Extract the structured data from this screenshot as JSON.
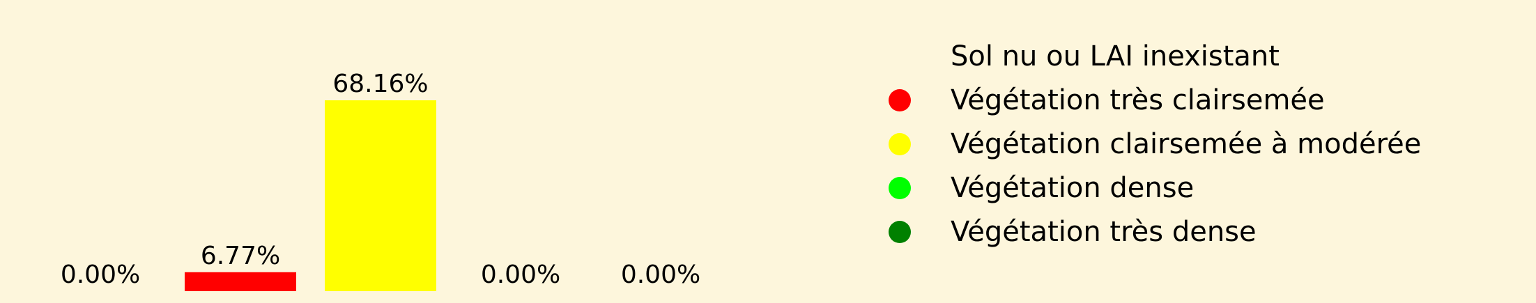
{
  "colors": {
    "background": "#fdf6dc",
    "text": "#000000"
  },
  "chart_data": {
    "type": "bar",
    "categories": [
      "Sol nu ou LAI inexistant",
      "Végétation très clairsemée",
      "Végétation clairsemée à modérée",
      "Végétation dense",
      "Végétation très dense"
    ],
    "values": [
      0.0,
      6.77,
      68.16,
      0.0,
      0.0
    ],
    "data_labels": [
      "0.00%",
      "6.77%",
      "68.16%",
      "0.00%",
      "0.00%"
    ],
    "colors": [
      "#fdf6dc",
      "#ff0000",
      "#ffff00",
      "#00ff00",
      "#008000"
    ],
    "ylim": [
      0,
      68.16
    ],
    "grid": false,
    "legend_position": "right"
  },
  "legend": {
    "items": [
      {
        "label": "Sol nu ou LAI inexistant",
        "color": "#fdf6dc"
      },
      {
        "label": "Végétation très clairsemée",
        "color": "#ff0000"
      },
      {
        "label": "Végétation clairsemée à modérée",
        "color": "#ffff00"
      },
      {
        "label": "Végétation dense",
        "color": "#00ff00"
      },
      {
        "label": "Végétation très dense",
        "color": "#008000"
      }
    ]
  }
}
